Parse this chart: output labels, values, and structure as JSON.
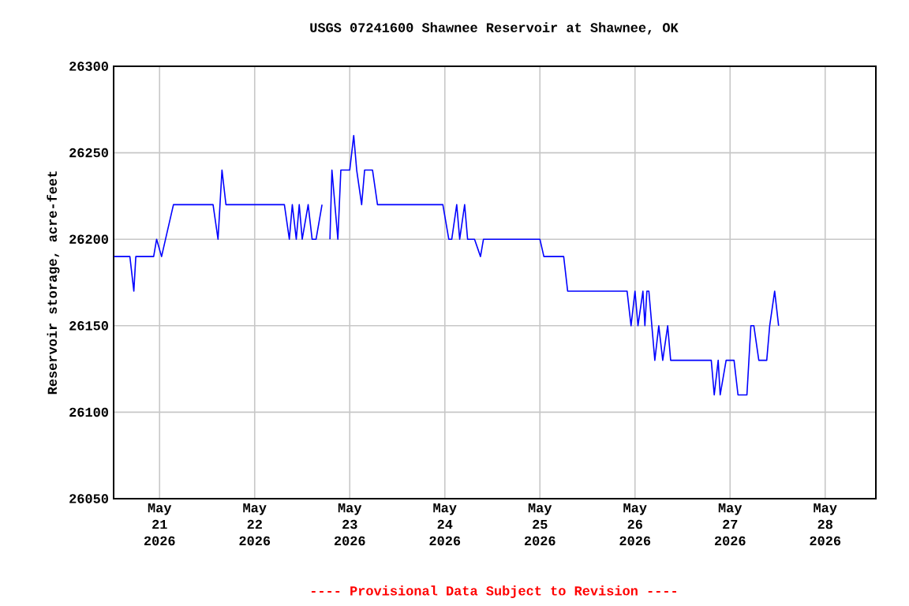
{
  "chart_data": {
    "type": "line",
    "title": "USGS 07241600 Shawnee Reservoir at Shawnee, OK",
    "ylabel": "Reservoir storage, acre-feet",
    "annotations": [
      "---- Provisional Data Subject to Revision ----"
    ],
    "x": [
      "2026-05-20T12:30",
      "2026-05-20T16:30",
      "2026-05-20T17:30",
      "2026-05-20T18:00",
      "2026-05-20T22:30",
      "2026-05-20T23:15",
      "2026-05-21T00:30",
      "2026-05-21T01:30",
      "2026-05-21T03:30",
      "2026-05-21T13:30",
      "2026-05-21T14:45",
      "2026-05-21T15:45",
      "2026-05-21T16:45",
      "2026-05-22T07:30",
      "2026-05-22T08:45",
      "2026-05-22T09:30",
      "2026-05-22T10:30",
      "2026-05-22T11:15",
      "2026-05-22T12:00",
      "2026-05-22T13:30",
      "2026-05-22T14:30",
      "2026-05-22T15:30",
      "2026-05-22T17:00",
      "2026-05-22T18:00",
      "2026-05-22T19:00",
      "2026-05-22T19:30",
      "2026-05-22T21:00",
      "2026-05-22T21:45",
      "2026-05-23T00:00",
      "2026-05-23T01:00",
      "2026-05-23T01:45",
      "2026-05-23T03:00",
      "2026-05-23T03:45",
      "2026-05-23T05:45",
      "2026-05-23T07:00",
      "2026-05-23T23:30",
      "2026-05-24T01:00",
      "2026-05-24T01:45",
      "2026-05-24T03:00",
      "2026-05-24T03:45",
      "2026-05-24T05:00",
      "2026-05-24T05:45",
      "2026-05-24T07:30",
      "2026-05-24T09:00",
      "2026-05-24T09:45",
      "2026-05-25T00:00",
      "2026-05-25T01:00",
      "2026-05-25T06:00",
      "2026-05-25T07:00",
      "2026-05-25T22:00",
      "2026-05-25T23:00",
      "2026-05-26T00:00",
      "2026-05-26T00:45",
      "2026-05-26T02:00",
      "2026-05-26T02:30",
      "2026-05-26T03:00",
      "2026-05-26T03:30",
      "2026-05-26T04:15",
      "2026-05-26T05:00",
      "2026-05-26T06:00",
      "2026-05-26T07:00",
      "2026-05-26T08:15",
      "2026-05-26T09:00",
      "2026-05-26T19:15",
      "2026-05-26T20:00",
      "2026-05-26T21:00",
      "2026-05-26T21:30",
      "2026-05-26T23:00",
      "2026-05-27T01:00",
      "2026-05-27T02:00",
      "2026-05-27T04:15",
      "2026-05-27T05:15",
      "2026-05-27T06:00",
      "2026-05-27T07:15",
      "2026-05-27T09:15",
      "2026-05-27T10:00",
      "2026-05-27T11:15",
      "2026-05-27T12:15"
    ],
    "values": [
      26190,
      26190,
      26170,
      26190,
      26190,
      26200,
      26190,
      26200,
      26220,
      26220,
      26200,
      26240,
      26220,
      26220,
      26200,
      26220,
      26200,
      26220,
      26200,
      26220,
      26200,
      26200,
      26220,
      null,
      26200,
      26240,
      26200,
      26240,
      26240,
      26260,
      26240,
      26220,
      26240,
      26240,
      26220,
      26220,
      26200,
      26200,
      26220,
      26200,
      26220,
      26200,
      26200,
      26190,
      26200,
      26200,
      26190,
      26190,
      26170,
      26170,
      26150,
      26170,
      26150,
      26170,
      26150,
      26170,
      26170,
      26150,
      26130,
      26150,
      26130,
      26150,
      26130,
      26130,
      26110,
      26130,
      26110,
      26130,
      26130,
      26110,
      26110,
      26150,
      26150,
      26130,
      26130,
      26150,
      26170,
      26150
    ],
    "color": "#0000ff",
    "xlim": [
      "2026-05-20T12:24",
      "2026-05-28T12:48"
    ],
    "xticks": [
      {
        "value": "2026-05-21",
        "label": "May 21 2026"
      },
      {
        "value": "2026-05-22",
        "label": "May 22 2026"
      },
      {
        "value": "2026-05-23",
        "label": "May 23 2026"
      },
      {
        "value": "2026-05-24",
        "label": "May 24 2026"
      },
      {
        "value": "2026-05-25",
        "label": "May 25 2026"
      },
      {
        "value": "2026-05-26",
        "label": "May 26 2026"
      },
      {
        "value": "2026-05-27",
        "label": "May 27 2026"
      },
      {
        "value": "2026-05-28",
        "label": "May 28 2026"
      }
    ],
    "ylim": [
      26050,
      26300
    ],
    "yticks": [
      26050,
      26100,
      26150,
      26200,
      26250,
      26300
    ],
    "grid": true
  }
}
